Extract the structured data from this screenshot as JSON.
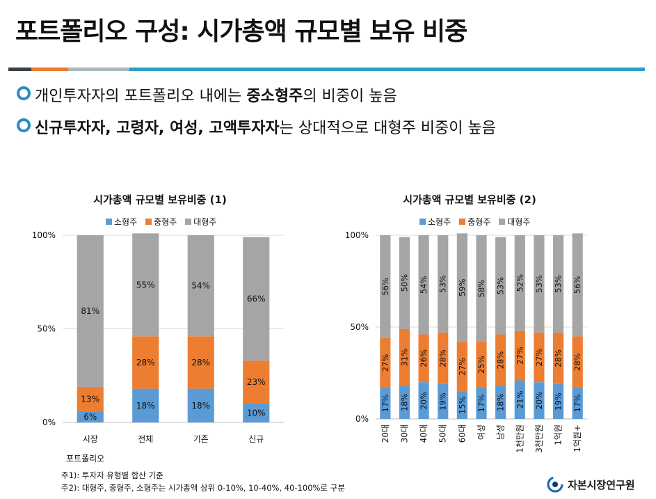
{
  "header": {
    "title": "포트폴리오 구성: 시가총액 규모별 보유 비중",
    "rule_colors": [
      "#3a3f47",
      "#ee7a2f",
      "#aab7bd",
      "#2aa0c8"
    ]
  },
  "bullets": [
    {
      "parts": [
        {
          "text": "개인투자자의 포트폴리오 내에는 ",
          "bold": false
        },
        {
          "text": "중소형주",
          "bold": true
        },
        {
          "text": "의 비중이 높음",
          "bold": false
        }
      ]
    },
    {
      "parts": [
        {
          "text": "신규투자자, 고령자, 여성, 고액투자자",
          "bold": true
        },
        {
          "text": "는 상대적으로 대형주 비중이 높음",
          "bold": false
        }
      ]
    }
  ],
  "chart_data": [
    {
      "type": "bar",
      "stacked": true,
      "title": "시가총액 규모별 보유비중 (1)",
      "categories": [
        "시장",
        "전체",
        "기존",
        "신규"
      ],
      "category_sublabel": "포트폴리오",
      "yticks": [
        "0%",
        "50%",
        "100%"
      ],
      "ylim": [
        0,
        100
      ],
      "series": [
        {
          "name": "소형주",
          "color": "#5b9bd5",
          "values": [
            6,
            18,
            18,
            10
          ],
          "labels": [
            "6%",
            "18%",
            "18%",
            "10%"
          ]
        },
        {
          "name": "중형주",
          "color": "#ed7d31",
          "values": [
            13,
            28,
            28,
            23
          ],
          "labels": [
            "13%",
            "28%",
            "28%",
            "23%"
          ]
        },
        {
          "name": "대형주",
          "color": "#a5a5a5",
          "values": [
            81,
            55,
            54,
            66
          ],
          "labels": [
            "81%",
            "55%",
            "54%",
            "66%"
          ]
        }
      ],
      "grid": true,
      "legend": "top"
    },
    {
      "type": "bar",
      "stacked": true,
      "title": "시가총액 규모별 보유비중 (2)",
      "categories": [
        "20대",
        "30대",
        "40대",
        "50대",
        "60대",
        "여성",
        "남성",
        "1천만원",
        "3천만원",
        "1억원",
        "1억원+"
      ],
      "yticks": [
        "0%",
        "50%",
        "100%"
      ],
      "ylim": [
        0,
        100
      ],
      "series": [
        {
          "name": "소형주",
          "color": "#5b9bd5",
          "values": [
            17,
            18,
            20,
            19,
            15,
            17,
            18,
            21,
            20,
            19,
            17
          ],
          "labels": [
            "17%",
            "18%",
            "20%",
            "19%",
            "15%",
            "17%",
            "18%",
            "21%",
            "20%",
            "19%",
            "17%"
          ]
        },
        {
          "name": "중형주",
          "color": "#ed7d31",
          "values": [
            27,
            31,
            26,
            28,
            27,
            25,
            28,
            27,
            27,
            28,
            28
          ],
          "labels": [
            "27%",
            "31%",
            "26%",
            "28%",
            "27%",
            "25%",
            "28%",
            "27%",
            "27%",
            "28%",
            "28%"
          ]
        },
        {
          "name": "대형주",
          "color": "#a5a5a5",
          "values": [
            56,
            50,
            54,
            53,
            59,
            58,
            53,
            52,
            53,
            53,
            56
          ],
          "labels": [
            "56%",
            "50%",
            "54%",
            "53%",
            "59%",
            "58%",
            "53%",
            "52%",
            "53%",
            "53%",
            "56%"
          ]
        }
      ],
      "grid": true,
      "legend": "top"
    }
  ],
  "notes": [
    "주1): 투자자 유형별 합산 기준",
    "주2): 대형주, 중형주, 소형주는 시가총액 상위 0-10%, 10-40%, 40-100%로 구분"
  ],
  "brand": {
    "name": "자본시장연구원",
    "icon": "kcmi-logo-icon"
  }
}
